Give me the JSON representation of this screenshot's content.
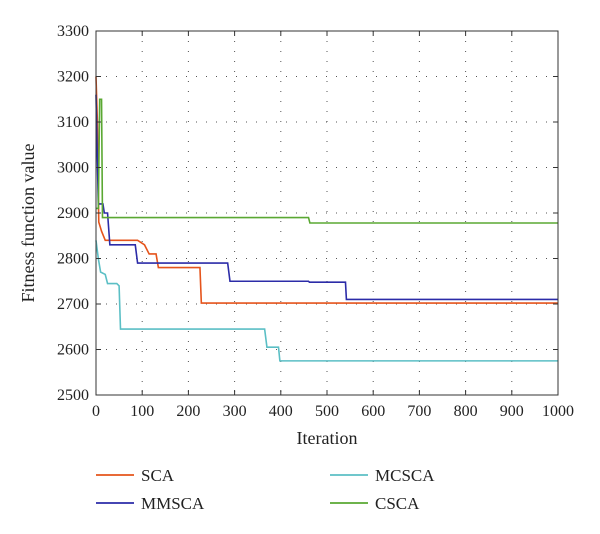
{
  "chart_data": {
    "type": "line",
    "title": "",
    "xlabel": "Iteration",
    "ylabel": "Fitness function value",
    "xlim": [
      0,
      1000
    ],
    "ylim": [
      2500,
      3300
    ],
    "xticks": [
      0,
      100,
      200,
      300,
      400,
      500,
      600,
      700,
      800,
      900,
      1000
    ],
    "yticks": [
      2500,
      2600,
      2700,
      2800,
      2900,
      3000,
      3100,
      3200,
      3300
    ],
    "grid": true,
    "legend_position": "bottom",
    "series": [
      {
        "name": "SCA",
        "color": "#e5541c",
        "points": [
          [
            0,
            3200
          ],
          [
            3,
            3100
          ],
          [
            6,
            2880
          ],
          [
            12,
            2860
          ],
          [
            20,
            2840
          ],
          [
            30,
            2840
          ],
          [
            40,
            2840
          ],
          [
            90,
            2840
          ],
          [
            105,
            2830
          ],
          [
            115,
            2810
          ],
          [
            130,
            2810
          ],
          [
            135,
            2780
          ],
          [
            225,
            2780
          ],
          [
            228,
            2702
          ],
          [
            998,
            2702
          ],
          [
            1000,
            2700
          ]
        ]
      },
      {
        "name": "MMSCA",
        "color": "#2c2ca8",
        "points": [
          [
            0,
            3160
          ],
          [
            5,
            2920
          ],
          [
            15,
            2920
          ],
          [
            18,
            2900
          ],
          [
            25,
            2900
          ],
          [
            30,
            2830
          ],
          [
            85,
            2830
          ],
          [
            90,
            2790
          ],
          [
            285,
            2790
          ],
          [
            290,
            2750
          ],
          [
            460,
            2750
          ],
          [
            462,
            2748
          ],
          [
            540,
            2748
          ],
          [
            542,
            2710
          ],
          [
            1000,
            2710
          ]
        ]
      },
      {
        "name": "MCSCA",
        "color": "#5bbfc5",
        "points": [
          [
            0,
            2840
          ],
          [
            5,
            2800
          ],
          [
            10,
            2770
          ],
          [
            20,
            2765
          ],
          [
            25,
            2745
          ],
          [
            45,
            2745
          ],
          [
            50,
            2740
          ],
          [
            53,
            2645
          ],
          [
            365,
            2645
          ],
          [
            370,
            2605
          ],
          [
            395,
            2605
          ],
          [
            398,
            2575
          ],
          [
            1000,
            2575
          ]
        ]
      },
      {
        "name": "CSCA",
        "color": "#5aa832",
        "points": [
          [
            0,
            2910
          ],
          [
            5,
            2910
          ],
          [
            8,
            3150
          ],
          [
            12,
            3150
          ],
          [
            14,
            2890
          ],
          [
            460,
            2890
          ],
          [
            463,
            2878
          ],
          [
            1000,
            2878
          ]
        ]
      }
    ]
  }
}
